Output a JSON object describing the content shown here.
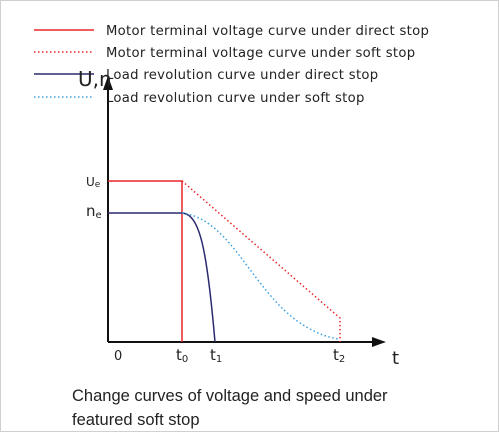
{
  "legend": [
    {
      "label": "Motor terminal voltage curve under direct stop"
    },
    {
      "label": "Motor terminal voltage curve under soft stop"
    },
    {
      "label": "Load revolution curve under direct stop"
    },
    {
      "label": "Load revolution curve under soft stop"
    }
  ],
  "axes": {
    "y_label": "U,n",
    "x_label": "t",
    "origin": "0"
  },
  "y_levels": [
    {
      "main": "U",
      "sub": "e"
    },
    {
      "main": "n",
      "sub": "e"
    }
  ],
  "x_marks": [
    {
      "main": "t",
      "sub": "0"
    },
    {
      "main": "t",
      "sub": "1"
    },
    {
      "main": "t",
      "sub": "2"
    }
  ],
  "caption": {
    "lines": [
      "Change curves of voltage and speed under",
      "featured soft stop"
    ]
  }
}
